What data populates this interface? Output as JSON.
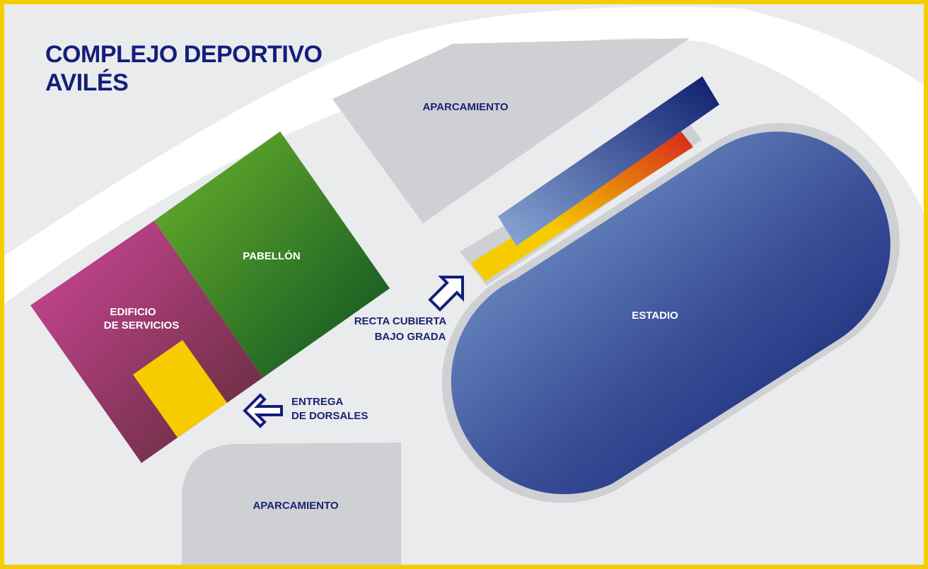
{
  "title": {
    "line1": "COMPLEJO DEPORTIVO",
    "line2": "AVILÉS"
  },
  "zones": {
    "parking_top": "APARCAMIENTO",
    "parking_bottom": "APARCAMIENTO",
    "pavilion": "PABELLÓN",
    "services_line1": "EDIFICIO",
    "services_line2": "DE SERVICIOS",
    "stadium": "ESTADIO"
  },
  "markers": {
    "covered_track_line1": "RECTA CUBIERTA",
    "covered_track_line2": "BAJO GRADA",
    "bib_pickup_line1": "ENTREGA",
    "bib_pickup_line2": "DE DORSALES"
  },
  "icons": {
    "covered_track": "arrow-up-right-icon",
    "bib_pickup": "arrow-left-icon"
  },
  "colors": {
    "border": "#f6cc00",
    "background": "#eaebed",
    "road": "#ffffff",
    "parking": "#cfd0d3",
    "pavilion": "#3f8f1f",
    "services": "#a23a6a",
    "stadium": "#3c5aa5",
    "highlight": "#f6cc00",
    "text_dark": "#131f7a"
  }
}
